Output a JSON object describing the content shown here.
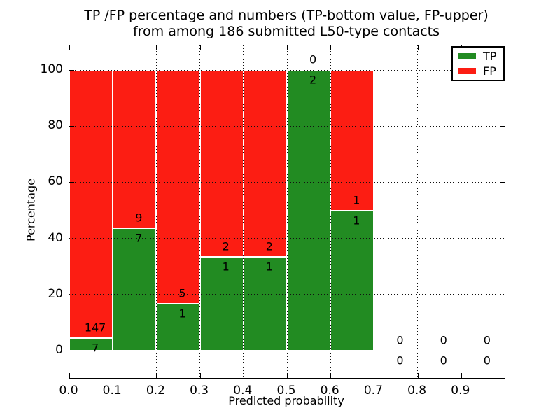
{
  "chart_data": {
    "type": "bar",
    "stacked": true,
    "title_line1": "TP /FP percentage and numbers (TP-bottom value, FP-upper)",
    "title_line2": "from among 186 submitted L50-type contacts",
    "xlabel": "Predicted probability",
    "ylabel": "Percentage",
    "total_contacts": 186,
    "xlim": [
      0.0,
      1.0
    ],
    "ylim": [
      -10,
      110
    ],
    "xticks": [
      0.0,
      0.1,
      0.2,
      0.3,
      0.4,
      0.5,
      0.6,
      0.7,
      0.8,
      0.9
    ],
    "xtick_labels": [
      "0.0",
      "0.1",
      "0.2",
      "0.3",
      "0.4",
      "0.5",
      "0.6",
      "0.7",
      "0.8",
      "0.9"
    ],
    "yticks": [
      0,
      20,
      40,
      60,
      80,
      100
    ],
    "grid": "dotted",
    "legend_position": "upper-right",
    "colors": {
      "tp": "#228b22",
      "fp": "#fc1d13"
    },
    "legend": [
      {
        "label": "TP",
        "series": "tp"
      },
      {
        "label": "FP",
        "series": "fp"
      }
    ],
    "bins": [
      {
        "x0": 0.0,
        "x1": 0.1,
        "tp_count": 7,
        "fp_count": 147,
        "tp_pct": 4.5,
        "fp_pct": 95.5
      },
      {
        "x0": 0.1,
        "x1": 0.2,
        "tp_count": 7,
        "fp_count": 9,
        "tp_pct": 43.8,
        "fp_pct": 56.2
      },
      {
        "x0": 0.2,
        "x1": 0.3,
        "tp_count": 1,
        "fp_count": 5,
        "tp_pct": 16.7,
        "fp_pct": 83.3
      },
      {
        "x0": 0.3,
        "x1": 0.4,
        "tp_count": 1,
        "fp_count": 2,
        "tp_pct": 33.3,
        "fp_pct": 66.7
      },
      {
        "x0": 0.4,
        "x1": 0.5,
        "tp_count": 1,
        "fp_count": 2,
        "tp_pct": 33.3,
        "fp_pct": 66.7
      },
      {
        "x0": 0.5,
        "x1": 0.6,
        "tp_count": 2,
        "fp_count": 0,
        "tp_pct": 100.0,
        "fp_pct": 0.0
      },
      {
        "x0": 0.6,
        "x1": 0.7,
        "tp_count": 1,
        "fp_count": 1,
        "tp_pct": 50.0,
        "fp_pct": 50.0
      },
      {
        "x0": 0.7,
        "x1": 0.8,
        "tp_count": 0,
        "fp_count": 0,
        "tp_pct": 0,
        "fp_pct": 0
      },
      {
        "x0": 0.8,
        "x1": 0.9,
        "tp_count": 0,
        "fp_count": 0,
        "tp_pct": 0,
        "fp_pct": 0
      },
      {
        "x0": 0.9,
        "x1": 1.0,
        "tp_count": 0,
        "fp_count": 0,
        "tp_pct": 0,
        "fp_pct": 0
      }
    ]
  }
}
